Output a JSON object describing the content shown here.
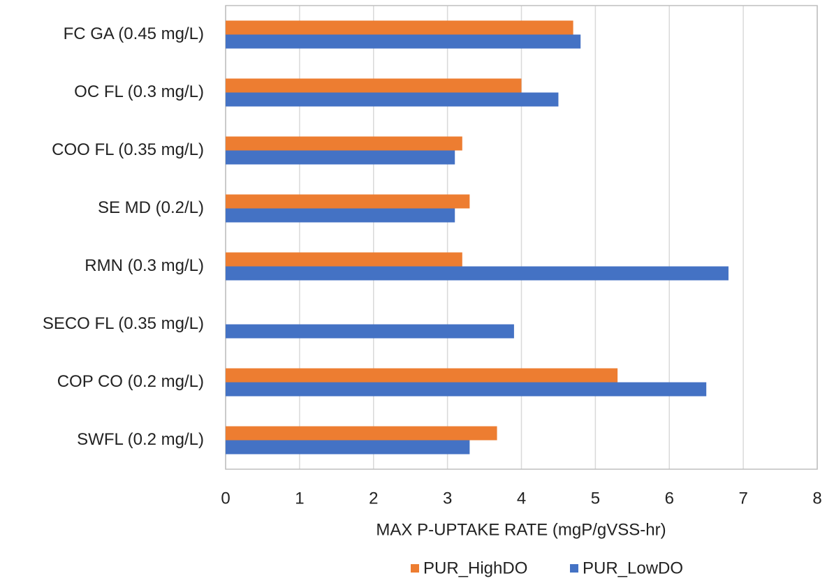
{
  "chart_data": {
    "type": "bar",
    "orientation": "horizontal",
    "x_label": "MAX P-UPTAKE RATE (mgP/gVSS-hr)",
    "categories": [
      "FC GA (0.45 mg/L)",
      "OC FL (0.3 mg/L)",
      "COO FL (0.35 mg/L)",
      "SE MD (0.2/L)",
      "RMN (0.3 mg/L)",
      "SECO FL (0.35 mg/L)",
      "COP CO (0.2 mg/L)",
      "SWFL (0.2 mg/L)"
    ],
    "series": [
      {
        "name": "PUR_HighDO",
        "color": "#ed7d31",
        "values": [
          4.7,
          4.0,
          3.2,
          3.3,
          3.2,
          null,
          5.3,
          3.67
        ]
      },
      {
        "name": "PUR_LowDO",
        "color": "#4472c4",
        "values": [
          4.8,
          4.5,
          3.1,
          3.1,
          6.8,
          3.9,
          6.5,
          3.3
        ]
      }
    ],
    "xlim": [
      0,
      8
    ],
    "xticks": [
      0,
      1,
      2,
      3,
      4,
      5,
      6,
      7,
      8
    ],
    "grid": true,
    "legend": "bottom"
  }
}
